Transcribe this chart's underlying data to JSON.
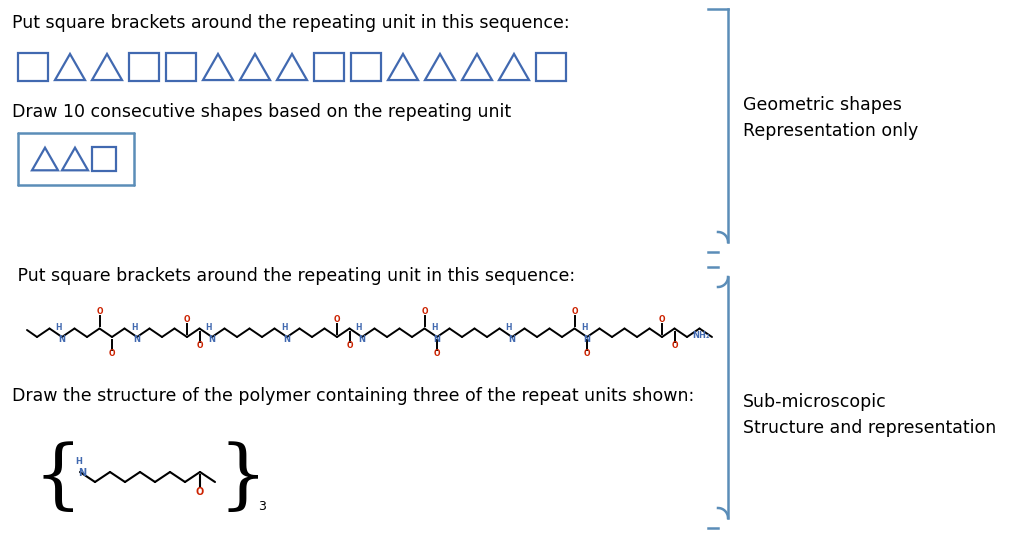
{
  "bg_color": "#ffffff",
  "text_color": "#000000",
  "blue_color": "#4169b0",
  "shape_color": "#4169b0",
  "red_color": "#cc2200",
  "bracket_blue": "#5b8db8",
  "text1": "Put square brackets around the repeating unit in this sequence:",
  "text2": "Draw 10 consecutive shapes based on the repeating unit",
  "text3": " Put square brackets around the repeating unit in this sequence:",
  "text4": "Draw the structure of the polymer containing three of the repeat units shown:",
  "label1": "Geometric shapes\nRepresentation only",
  "label2": "Sub-microscopic\nStructure and representation",
  "shapes_row1": [
    "sq",
    "tri",
    "tri",
    "sq",
    "sq",
    "tri",
    "tri",
    "tri",
    "sq",
    "sq",
    "tri",
    "tri",
    "tri",
    "tri",
    "sq"
  ],
  "font_size": 12.5
}
